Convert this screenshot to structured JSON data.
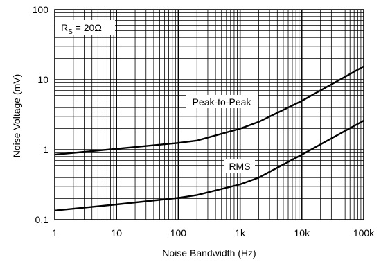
{
  "chart_data": {
    "type": "line",
    "title": "",
    "xlabel": "Noise Bandwidth (Hz)",
    "ylabel": "Noise Voltage  (mV)",
    "xscale": "log",
    "yscale": "log",
    "xlim": [
      1,
      100000
    ],
    "ylim": [
      0.1,
      100
    ],
    "grid": true,
    "legend": "none",
    "x_tick_labels": [
      "1",
      "10",
      "100",
      "1k",
      "10k",
      "100k"
    ],
    "y_tick_labels": [
      "0.1",
      "1",
      "10",
      "100"
    ],
    "annotations": {
      "rs_label_main": "R",
      "rs_label_sub": "S",
      "rs_label_rest": " = 20Ω"
    },
    "series": [
      {
        "name": "Peak-to-Peak",
        "x": [
          1,
          10,
          100,
          200,
          1000,
          2000,
          10000,
          100000
        ],
        "y": [
          0.85,
          1.03,
          1.25,
          1.35,
          2.0,
          2.5,
          5.0,
          15.5
        ]
      },
      {
        "name": "RMS",
        "x": [
          1,
          10,
          100,
          200,
          1000,
          2000,
          10000,
          100000
        ],
        "y": [
          0.135,
          0.165,
          0.205,
          0.225,
          0.32,
          0.4,
          0.85,
          2.6
        ]
      }
    ],
    "colors": {
      "line": "#000000",
      "grid": "#000000",
      "background": "#ffffff"
    }
  }
}
